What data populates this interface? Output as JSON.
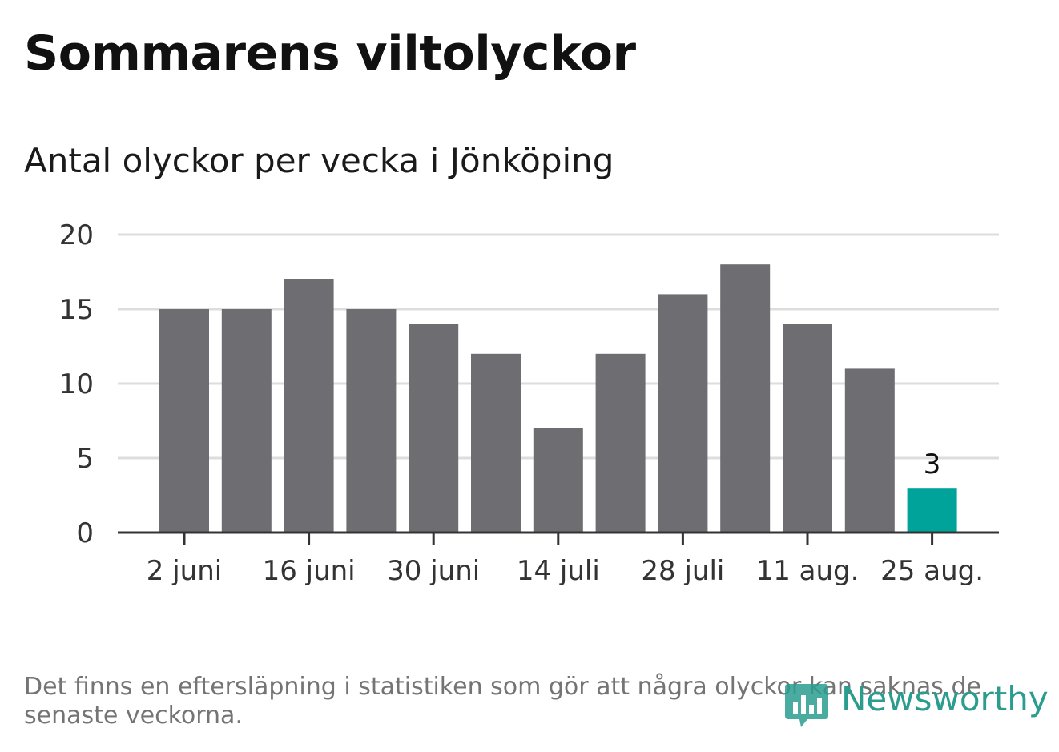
{
  "title": "Sommarens viltolyckor",
  "subtitle": "Antal olyckor per vecka i Jönköping",
  "footnote": "Det finns en eftersläpning i statistiken som gör att några olyckor kan saknas de senaste veckorna.",
  "logo_text": "Newsworthy",
  "colors": {
    "bar": "#6e6d72",
    "highlight": "#00a39a",
    "grid": "#dddddd",
    "axis": "#333333",
    "logo": "#2a9d8f"
  },
  "chart_data": {
    "type": "bar",
    "title": "",
    "ylim": [
      0,
      20
    ],
    "yticks": [
      0,
      5,
      10,
      15,
      20
    ],
    "categories": [
      "2 juni",
      "9 juni",
      "16 juni",
      "23 juni",
      "30 juni",
      "7 juli",
      "14 juli",
      "21 juli",
      "28 juli",
      "4 aug.",
      "11 aug.",
      "18 aug.",
      "25 aug."
    ],
    "xtick_labels": [
      "2 juni",
      "16 juni",
      "30 juni",
      "14 juli",
      "28 juli",
      "11 aug.",
      "25 aug."
    ],
    "values": [
      15,
      15,
      17,
      15,
      14,
      12,
      7,
      12,
      16,
      18,
      14,
      11,
      3
    ],
    "highlight_index": 12,
    "data_labels": {
      "12": "3"
    },
    "grid": true
  }
}
